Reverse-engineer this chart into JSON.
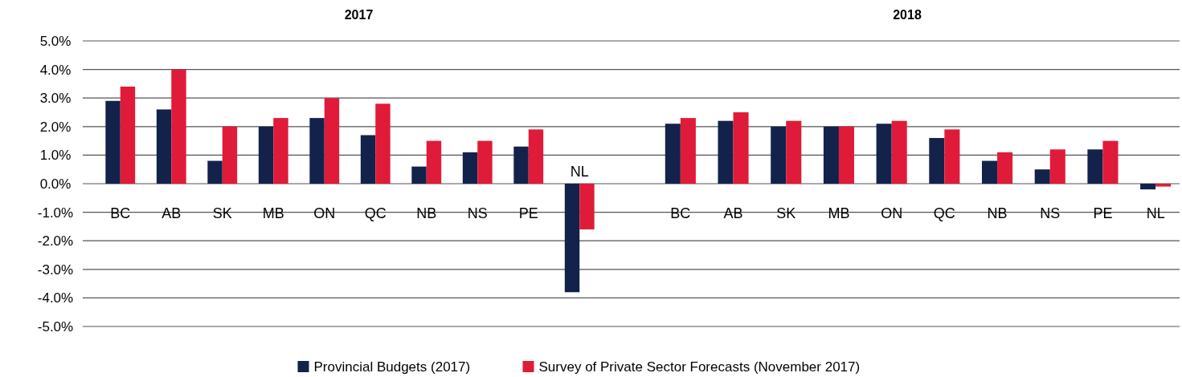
{
  "chart_data": [
    {
      "type": "bar",
      "title": "2017",
      "categories": [
        "BC",
        "AB",
        "SK",
        "MB",
        "ON",
        "QC",
        "NB",
        "NS",
        "PE",
        "NL"
      ],
      "series": [
        {
          "name": "Provincial Budgets (2017)",
          "color": "#13224a",
          "values": [
            2.9,
            2.6,
            0.8,
            2.0,
            2.3,
            1.7,
            0.6,
            1.1,
            1.3,
            -3.8
          ]
        },
        {
          "name": "Survey of Private Sector Forecasts (November 2017)",
          "color": "#e01b3a",
          "values": [
            3.4,
            4.0,
            2.0,
            2.3,
            3.0,
            2.8,
            1.5,
            1.5,
            1.9,
            -1.6
          ]
        }
      ],
      "ylim": [
        -5,
        5
      ],
      "yticks": [
        {
          "value": -5,
          "label": "-5.0%"
        },
        {
          "value": -4,
          "label": "-4.0%"
        },
        {
          "value": -3,
          "label": "-3.0%"
        },
        {
          "value": -2,
          "label": "-2.0%"
        },
        {
          "value": -1,
          "label": "-1.0%"
        },
        {
          "value": 0,
          "label": "0.0%"
        },
        {
          "value": 1,
          "label": "1.0%"
        },
        {
          "value": 2,
          "label": "2.0%"
        },
        {
          "value": 3,
          "label": "3.0%"
        },
        {
          "value": 4,
          "label": "4.0%"
        },
        {
          "value": 5,
          "label": "5.0%"
        }
      ],
      "grid": "y",
      "legend": "bottom"
    },
    {
      "type": "bar",
      "title": "2018",
      "categories": [
        "BC",
        "AB",
        "SK",
        "MB",
        "ON",
        "QC",
        "NB",
        "NS",
        "PE",
        "NL"
      ],
      "series": [
        {
          "color": "#13224a",
          "values": [
            2.1,
            2.2,
            2.0,
            2.0,
            2.1,
            1.6,
            0.8,
            0.5,
            1.2,
            -0.2
          ]
        },
        {
          "color": "#e01b3a",
          "values": [
            2.3,
            2.5,
            2.2,
            2.0,
            2.2,
            1.9,
            1.1,
            1.2,
            1.5,
            -0.1
          ]
        }
      ],
      "ylim": [
        -5,
        5
      ],
      "yticks": [
        -5,
        -4,
        -3,
        -2,
        -1,
        0,
        1,
        2,
        3,
        4,
        5
      ],
      "grid": "y",
      "tick_labels": "x"
    }
  ]
}
